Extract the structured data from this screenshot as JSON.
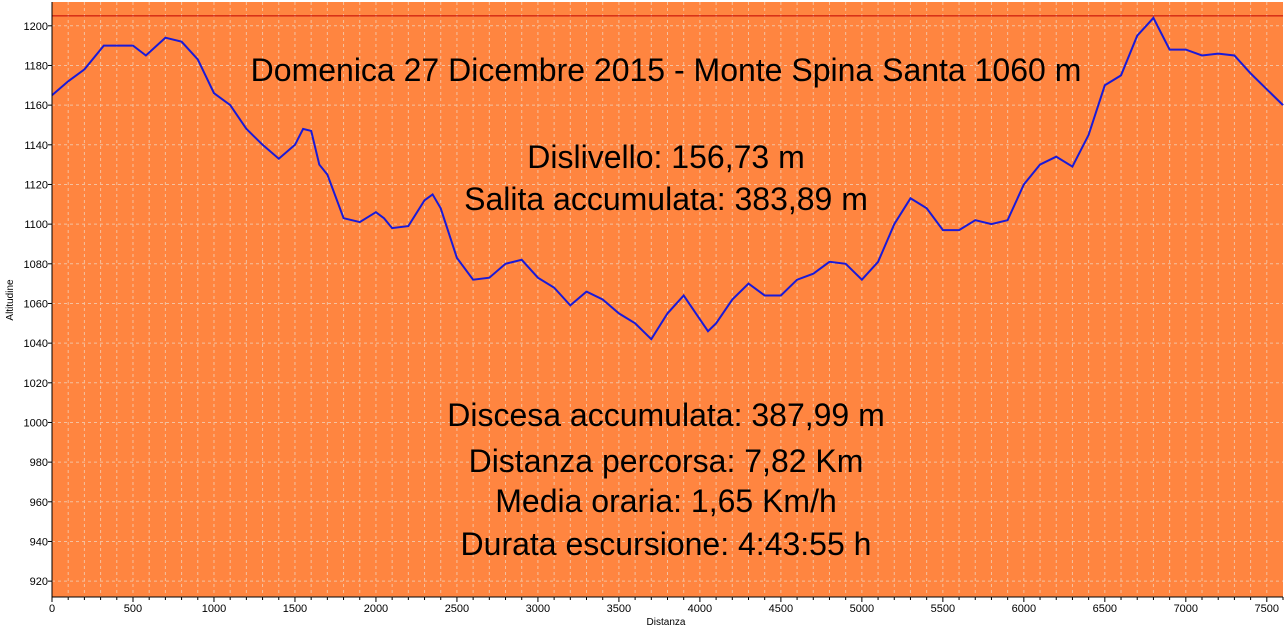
{
  "colors": {
    "plot_background": "#FF8540",
    "grid": "#F4C1A0",
    "line": "#1A1AD8",
    "marker_line": "#C00000",
    "axis": "#000000"
  },
  "chart_data": {
    "type": "line",
    "title": "Domenica 27 Dicembre 2015 - Monte Spina Santa 1060 m",
    "xlabel": "Distanza",
    "ylabel": "Altitudine",
    "xlim": [
      0,
      7600
    ],
    "ylim": [
      912,
      1212
    ],
    "grid": true,
    "max_line_y": 1205,
    "x_ticks": [
      0,
      500,
      1000,
      1500,
      2000,
      2500,
      3000,
      3500,
      4000,
      4500,
      5000,
      5500,
      6000,
      6500,
      7000,
      7500
    ],
    "y_ticks": [
      920,
      940,
      960,
      980,
      1000,
      1020,
      1040,
      1060,
      1080,
      1100,
      1120,
      1140,
      1160,
      1180,
      1200
    ],
    "annotations": [
      "Dislivello: 156,73 m",
      "Salita accumulata: 383,89 m",
      "Discesa accumulata: 387,99 m",
      "Distanza percorsa: 7,82 Km",
      "Media oraria: 1,65 Km/h",
      "Durata escursione: 4:43:55 h"
    ],
    "series": [
      {
        "x": [
          0,
          100,
          200,
          320,
          420,
          500,
          580,
          700,
          800,
          900,
          1000,
          1100,
          1200,
          1300,
          1400,
          1500,
          1550,
          1600,
          1650,
          1700,
          1800,
          1900,
          2000,
          2050,
          2100,
          2200,
          2300,
          2350,
          2400,
          2500,
          2600,
          2700,
          2800,
          2900,
          3000,
          3100,
          3200,
          3300,
          3400,
          3500,
          3600,
          3700,
          3800,
          3900,
          4000,
          4050,
          4100,
          4200,
          4300,
          4400,
          4500,
          4600,
          4700,
          4800,
          4900,
          5000,
          5100,
          5200,
          5300,
          5400,
          5500,
          5600,
          5700,
          5800,
          5900,
          6000,
          6100,
          6200,
          6300,
          6400,
          6500,
          6600,
          6700,
          6800,
          6900,
          7000,
          7100,
          7200,
          7300,
          7400,
          7500,
          7600
        ],
        "y": [
          1165,
          1172,
          1178,
          1190,
          1190,
          1190,
          1185,
          1194,
          1192,
          1183,
          1166,
          1160,
          1148,
          1140,
          1133,
          1140,
          1148,
          1147,
          1130,
          1125,
          1103,
          1101,
          1106,
          1103,
          1098,
          1099,
          1112,
          1115,
          1108,
          1083,
          1072,
          1073,
          1080,
          1082,
          1073,
          1068,
          1059,
          1066,
          1062,
          1055,
          1050,
          1042,
          1055,
          1064,
          1052,
          1046,
          1050,
          1062,
          1070,
          1064,
          1064,
          1072,
          1075,
          1081,
          1080,
          1072,
          1081,
          1100,
          1113,
          1108,
          1097,
          1097,
          1102,
          1100,
          1102,
          1120,
          1130,
          1134,
          1129,
          1145,
          1170,
          1175,
          1195,
          1204,
          1188,
          1188,
          1185,
          1186,
          1185,
          1176,
          1168,
          1160
        ]
      }
    ]
  }
}
